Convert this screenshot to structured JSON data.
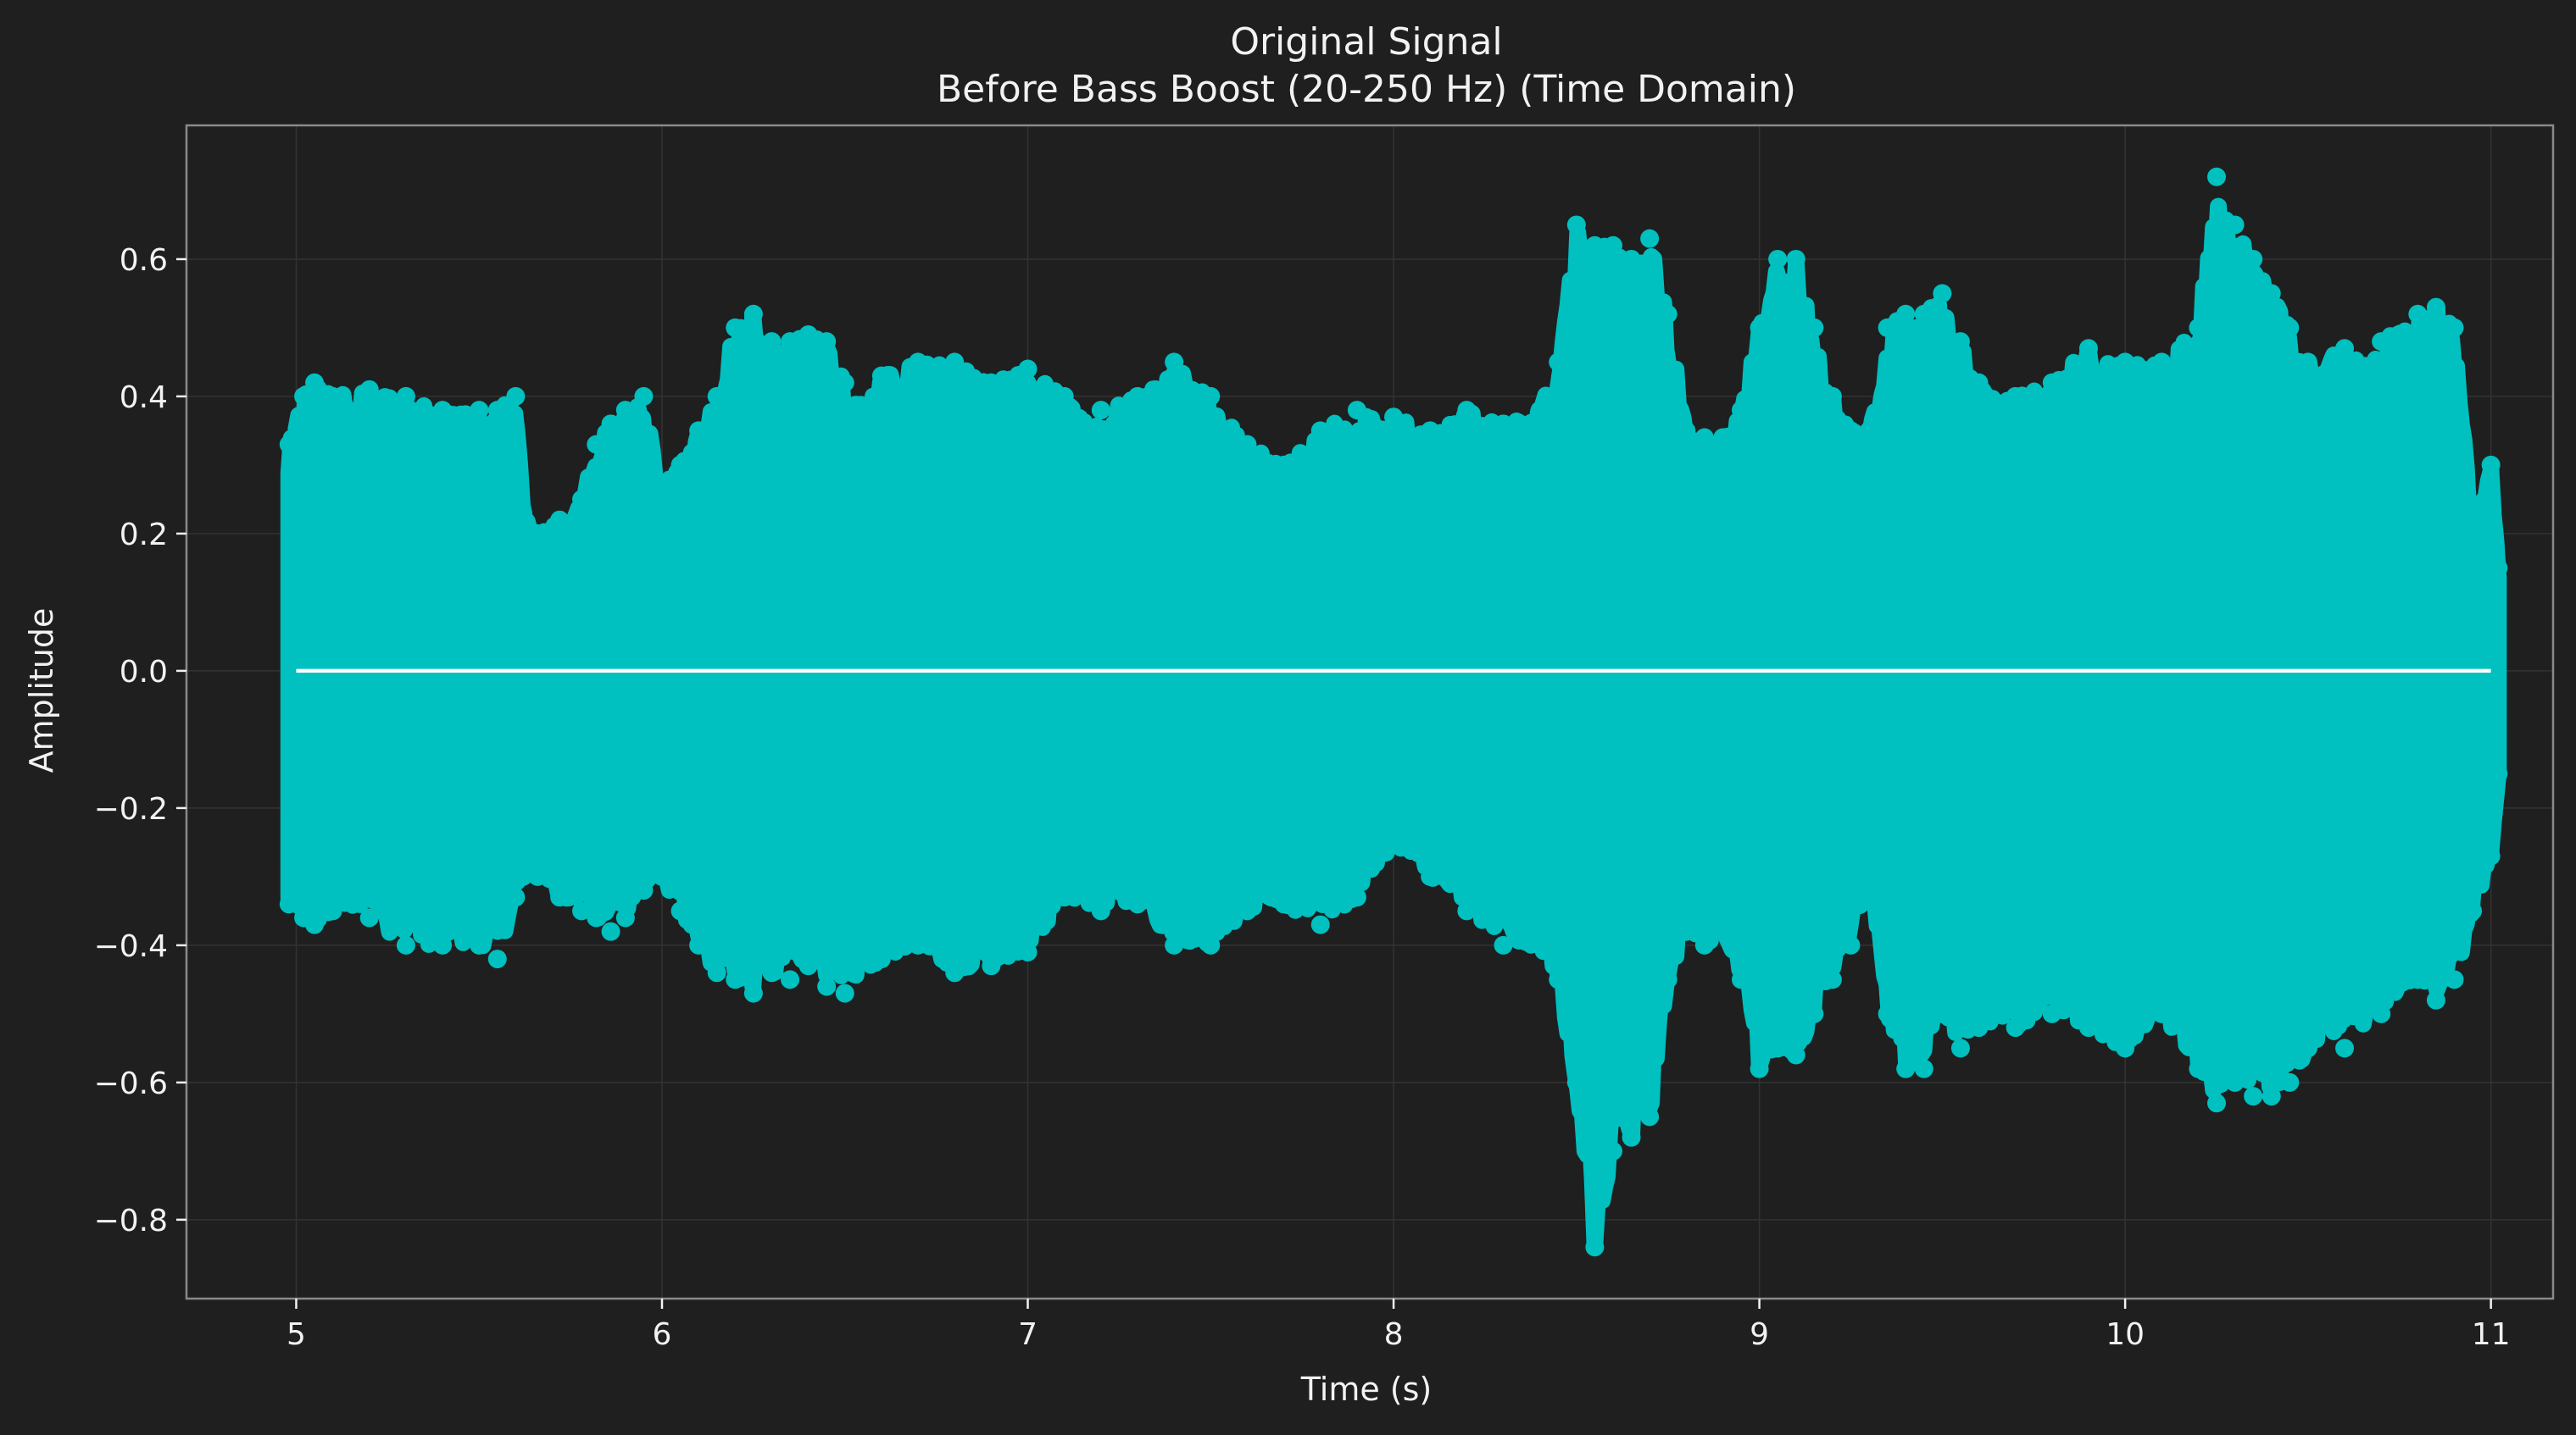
{
  "chart_data": {
    "type": "line",
    "title": "Original Signal",
    "subtitle": "Before Bass Boost (20-250 Hz) (Time Domain)",
    "xlabel": "Time (s)",
    "ylabel": "Amplitude",
    "xlim": [
      4.7,
      11.17
    ],
    "ylim": [
      -0.915,
      0.795
    ],
    "x_ticks": [
      5,
      6,
      7,
      8,
      9,
      10,
      11
    ],
    "x_tick_labels": [
      "5",
      "6",
      "7",
      "8",
      "9",
      "10",
      "11"
    ],
    "y_ticks": [
      0.6,
      0.4,
      0.2,
      0.0,
      -0.2,
      -0.4,
      -0.6,
      -0.8
    ],
    "y_tick_labels": [
      "0.6",
      "0.4",
      "0.2",
      "0.0",
      "−0.2",
      "−0.4",
      "−0.6",
      "−0.8"
    ],
    "grid": true,
    "legend": "none",
    "colors": {
      "background": "#1f1f1f",
      "signal": "#00c0c0",
      "zero_line": "#ffffff",
      "text": "#f2f2f2",
      "grid": "#333333",
      "frame": "#8a8a8a"
    },
    "series": [
      {
        "kind": "envelope",
        "x": [
          4.98,
          5.02,
          5.05,
          5.1,
          5.2,
          5.3,
          5.4,
          5.5,
          5.55,
          5.6,
          5.62,
          5.66,
          5.72,
          5.78,
          5.82,
          5.86,
          5.9,
          5.95,
          6.0,
          6.05,
          6.1,
          6.15,
          6.2,
          6.25,
          6.3,
          6.35,
          6.4,
          6.45,
          6.5,
          6.6,
          6.7,
          6.8,
          6.9,
          7.0,
          7.1,
          7.2,
          7.3,
          7.4,
          7.5,
          7.6,
          7.7,
          7.8,
          7.9,
          8.0,
          8.1,
          8.2,
          8.3,
          8.4,
          8.45,
          8.5,
          8.55,
          8.6,
          8.65,
          8.7,
          8.75,
          8.8,
          8.85,
          8.9,
          8.95,
          9.0,
          9.05,
          9.1,
          9.15,
          9.2,
          9.25,
          9.3,
          9.35,
          9.4,
          9.45,
          9.5,
          9.55,
          9.6,
          9.7,
          9.8,
          9.9,
          10.0,
          10.1,
          10.2,
          10.25,
          10.3,
          10.35,
          10.4,
          10.45,
          10.5,
          10.6,
          10.7,
          10.8,
          10.85,
          10.9,
          10.95,
          11.0,
          11.02
        ],
        "upper": [
          0.33,
          0.4,
          0.42,
          0.4,
          0.41,
          0.4,
          0.38,
          0.38,
          0.38,
          0.4,
          0.23,
          0.2,
          0.22,
          0.25,
          0.33,
          0.36,
          0.38,
          0.4,
          0.27,
          0.3,
          0.35,
          0.4,
          0.5,
          0.52,
          0.48,
          0.48,
          0.49,
          0.48,
          0.42,
          0.43,
          0.45,
          0.45,
          0.42,
          0.44,
          0.4,
          0.38,
          0.4,
          0.45,
          0.4,
          0.33,
          0.3,
          0.35,
          0.38,
          0.37,
          0.35,
          0.38,
          0.36,
          0.38,
          0.45,
          0.65,
          0.62,
          0.62,
          0.6,
          0.63,
          0.52,
          0.35,
          0.34,
          0.34,
          0.38,
          0.5,
          0.6,
          0.6,
          0.5,
          0.4,
          0.35,
          0.35,
          0.5,
          0.52,
          0.52,
          0.55,
          0.48,
          0.42,
          0.4,
          0.42,
          0.47,
          0.45,
          0.45,
          0.5,
          0.72,
          0.65,
          0.6,
          0.55,
          0.5,
          0.45,
          0.47,
          0.48,
          0.52,
          0.53,
          0.5,
          0.2,
          0.3,
          0.15
        ],
        "lower": [
          -0.34,
          -0.36,
          -0.37,
          -0.35,
          -0.36,
          -0.4,
          -0.4,
          -0.4,
          -0.42,
          -0.33,
          -0.3,
          -0.3,
          -0.33,
          -0.35,
          -0.36,
          -0.38,
          -0.36,
          -0.32,
          -0.3,
          -0.35,
          -0.4,
          -0.44,
          -0.45,
          -0.47,
          -0.44,
          -0.45,
          -0.43,
          -0.46,
          -0.47,
          -0.42,
          -0.4,
          -0.44,
          -0.43,
          -0.41,
          -0.33,
          -0.35,
          -0.34,
          -0.4,
          -0.4,
          -0.35,
          -0.34,
          -0.37,
          -0.33,
          -0.25,
          -0.3,
          -0.35,
          -0.4,
          -0.4,
          -0.45,
          -0.6,
          -0.84,
          -0.7,
          -0.68,
          -0.65,
          -0.45,
          -0.38,
          -0.4,
          -0.38,
          -0.45,
          -0.58,
          -0.55,
          -0.56,
          -0.5,
          -0.45,
          -0.4,
          -0.3,
          -0.5,
          -0.58,
          -0.58,
          -0.5,
          -0.55,
          -0.52,
          -0.52,
          -0.5,
          -0.52,
          -0.55,
          -0.5,
          -0.58,
          -0.63,
          -0.6,
          -0.62,
          -0.62,
          -0.6,
          -0.55,
          -0.55,
          -0.5,
          -0.45,
          -0.48,
          -0.45,
          -0.35,
          -0.27,
          -0.15
        ]
      },
      {
        "kind": "zero-line",
        "x": [
          5.0,
          11.0
        ],
        "y": [
          0.0,
          0.0
        ]
      }
    ]
  }
}
